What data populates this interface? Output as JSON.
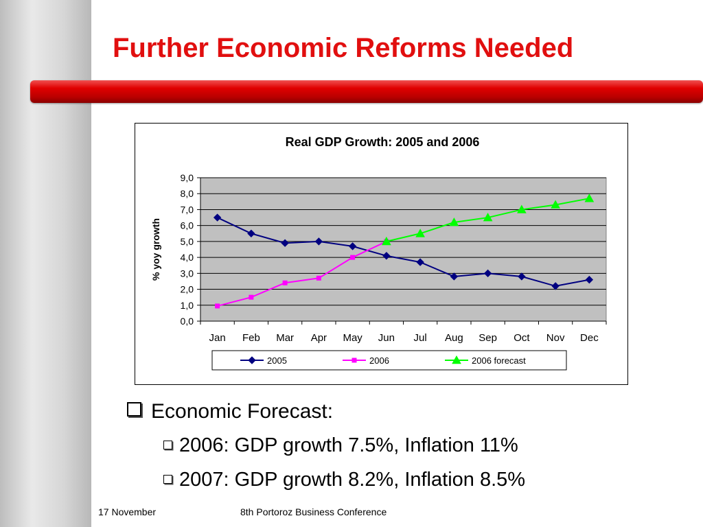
{
  "slide": {
    "title": "Further Economic Reforms Needed"
  },
  "bullets": {
    "main": "Economic Forecast:",
    "sub": [
      "2006: GDP growth 7.5%, Inflation 11%",
      "2007: GDP growth 8.2%, Inflation 8.5%"
    ]
  },
  "footer": {
    "date": "17 November",
    "event": "8th Portoroz Business Conference"
  },
  "colors": {
    "title": "#e10f0f",
    "plot_background": "#c0c0c0"
  },
  "chart_data": {
    "type": "line",
    "title": "Real GDP Growth: 2005 and 2006",
    "xlabel": "",
    "ylabel": "% yoy growth",
    "categories": [
      "Jan",
      "Feb",
      "Mar",
      "Apr",
      "May",
      "Jun",
      "Jul",
      "Aug",
      "Sep",
      "Oct",
      "Nov",
      "Dec"
    ],
    "ylim": [
      0,
      9
    ],
    "yticks": [
      "0,0",
      "1,0",
      "2,0",
      "3,0",
      "4,0",
      "5,0",
      "6,0",
      "7,0",
      "8,0",
      "9,0"
    ],
    "grid": true,
    "legend": "bottom",
    "series": [
      {
        "name": "2005",
        "color": "#000080",
        "marker": "diamond",
        "values": [
          6.5,
          5.5,
          4.9,
          5.0,
          4.7,
          4.1,
          3.7,
          2.8,
          3.0,
          2.8,
          2.2,
          2.6
        ]
      },
      {
        "name": "2006",
        "color": "#ff00ff",
        "marker": "square",
        "values": [
          0.95,
          1.5,
          2.4,
          2.7,
          4.0,
          5.0,
          null,
          null,
          null,
          null,
          null,
          null
        ]
      },
      {
        "name": "2006 forecast",
        "color": "#00ff00",
        "marker": "triangle",
        "values": [
          null,
          null,
          null,
          null,
          null,
          5.0,
          5.5,
          6.2,
          6.5,
          7.0,
          7.3,
          7.7
        ]
      }
    ]
  }
}
